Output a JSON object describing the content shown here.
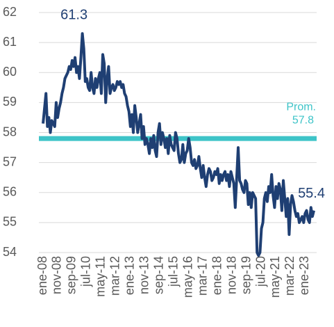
{
  "chart_data": {
    "type": "line",
    "categories": [
      "ene-08",
      null,
      null,
      null,
      null,
      null,
      null,
      null,
      null,
      null,
      "nov-08",
      null,
      null,
      null,
      null,
      null,
      null,
      null,
      null,
      null,
      "sep-09",
      null,
      null,
      null,
      null,
      null,
      null,
      null,
      null,
      null,
      "jul-10",
      null,
      null,
      null,
      null,
      null,
      null,
      null,
      null,
      null,
      "may-11",
      null,
      null,
      null,
      null,
      null,
      null,
      null,
      null,
      null,
      "mar-12",
      null,
      null,
      null,
      null,
      null,
      null,
      null,
      null,
      null,
      "ene-13",
      null,
      null,
      null,
      null,
      null,
      null,
      null,
      null,
      null,
      "nov-13",
      null,
      null,
      null,
      null,
      null,
      null,
      null,
      null,
      null,
      "sep-14",
      null,
      null,
      null,
      null,
      null,
      null,
      null,
      null,
      null,
      "jul-15",
      null,
      null,
      null,
      null,
      null,
      null,
      null,
      null,
      null,
      "may-16",
      null,
      null,
      null,
      null,
      null,
      null,
      null,
      null,
      null,
      "mar-17",
      null,
      null,
      null,
      null,
      null,
      null,
      null,
      null,
      null,
      "ene-18",
      null,
      null,
      null,
      null,
      null,
      null,
      null,
      null,
      null,
      "nov-18",
      null,
      null,
      null,
      null,
      null,
      null,
      null,
      null,
      null,
      "sep-19",
      null,
      null,
      null,
      null,
      null,
      null,
      null,
      null,
      null,
      "jul-20",
      null,
      null,
      null,
      null,
      null,
      null,
      null,
      null,
      null,
      "may-21",
      null,
      null,
      null,
      null,
      null,
      null,
      null,
      null,
      null,
      "mar-22",
      null,
      null,
      null,
      null,
      null,
      null,
      null,
      null,
      null,
      "ene-23",
      null,
      null,
      null,
      null,
      null,
      null
    ],
    "series": [
      {
        "color": "#1f3f73",
        "values": [
          58.3,
          58.8,
          59.3,
          58.2,
          58.5,
          58.0,
          58.4,
          58.3,
          58.2,
          59.0,
          58.5,
          58.8,
          59.0,
          59.3,
          59.5,
          59.8,
          59.9,
          60.0,
          60.2,
          60.1,
          60.4,
          60.2,
          60.5,
          60.0,
          60.2,
          59.8,
          60.5,
          61.3,
          60.8,
          59.7,
          59.8,
          59.5,
          59.4,
          60.0,
          59.5,
          59.3,
          59.8,
          59.5,
          59.8,
          60.0,
          59.3,
          60.6,
          60.3,
          59.0,
          59.8,
          60.2,
          59.3,
          59.5,
          59.6,
          59.4,
          59.5,
          59.7,
          59.6,
          59.7,
          59.5,
          59.6,
          59.3,
          59.2,
          58.9,
          58.7,
          58.2,
          58.6,
          58.0,
          58.9,
          58.5,
          58.0,
          58.3,
          58.6,
          57.8,
          58.2,
          57.6,
          57.8,
          57.6,
          57.3,
          57.8,
          57.5,
          57.9,
          57.4,
          57.2,
          58.0,
          58.3,
          57.6,
          58.0,
          57.8,
          57.5,
          57.8,
          57.3,
          57.9,
          57.6,
          57.5,
          57.4,
          58.0,
          57.8,
          57.3,
          57.0,
          57.1,
          57.6,
          57.0,
          57.3,
          57.4,
          57.8,
          57.5,
          57.0,
          56.9,
          57.1,
          56.8,
          56.9,
          57.2,
          56.8,
          56.5,
          56.9,
          56.5,
          56.2,
          56.6,
          56.8,
          56.7,
          56.4,
          56.5,
          56.7,
          56.6,
          56.8,
          56.3,
          56.6,
          56.4,
          56.6,
          56.7,
          56.4,
          56.6,
          56.2,
          56.7,
          56.5,
          56.3,
          55.5,
          56.5,
          57.5,
          56.4,
          56.3,
          56.1,
          56.0,
          56.4,
          56.3,
          55.6,
          56.0,
          55.5,
          56.0,
          55.9,
          55.8,
          54.0,
          53.9,
          54.0,
          54.8,
          55.0,
          55.8,
          56.0,
          55.7,
          56.2,
          56.0,
          56.6,
          55.9,
          55.5,
          56.2,
          55.8,
          56.3,
          56.1,
          55.4,
          56.4,
          55.8,
          55.2,
          55.8,
          54.6,
          55.6,
          55.9,
          55.7,
          55.4,
          55.2,
          55.3,
          55.0,
          55.1,
          55.2,
          55.0,
          55.3,
          55.4,
          55.1,
          55.0,
          55.5,
          55.2,
          55.4
        ]
      }
    ],
    "average": {
      "label": "Prom.",
      "value": 57.8,
      "color": "#3ec4c8"
    },
    "ylim": [
      54,
      62
    ],
    "yticks": [
      54,
      55,
      56,
      57,
      58,
      59,
      60,
      61,
      62
    ],
    "grid": true
  }
}
